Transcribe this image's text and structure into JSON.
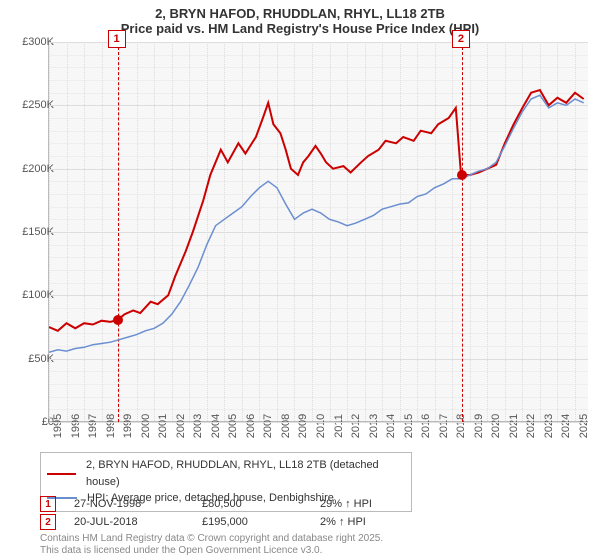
{
  "title_line1": "2, BRYN HAFOD, RHUDDLAN, RHYL, LL18 2TB",
  "title_line2": "Price paid vs. HM Land Registry's House Price Index (HPI)",
  "chart": {
    "type": "line",
    "background_color": "#f7f7f7",
    "grid_color_major": "#d8d8d8",
    "grid_color_minor": "#ececec",
    "axis_color": "#bbbbbb",
    "x_years": [
      1995,
      1996,
      1997,
      1998,
      1999,
      2000,
      2001,
      2002,
      2003,
      2004,
      2005,
      2006,
      2007,
      2008,
      2009,
      2010,
      2011,
      2012,
      2013,
      2014,
      2015,
      2016,
      2017,
      2018,
      2019,
      2020,
      2021,
      2022,
      2023,
      2024,
      2025
    ],
    "xlim": [
      1995,
      2025.8
    ],
    "ylim": [
      0,
      300000
    ],
    "ytick_step": 50000,
    "y_tick_labels": [
      "£0",
      "£50K",
      "£100K",
      "£150K",
      "£200K",
      "£250K",
      "£300K"
    ],
    "x_tick_labels": [
      "1995",
      "1996",
      "1997",
      "1998",
      "1999",
      "2000",
      "2001",
      "2002",
      "2003",
      "2004",
      "2005",
      "2006",
      "2007",
      "2008",
      "2009",
      "2010",
      "2011",
      "2012",
      "2013",
      "2014",
      "2015",
      "2016",
      "2017",
      "2018",
      "2019",
      "2020",
      "2021",
      "2022",
      "2023",
      "2024",
      "2025"
    ],
    "series": [
      {
        "id": "price_paid",
        "label": "2, BRYN HAFOD, RHUDDLAN, RHYL, LL18 2TB (detached house)",
        "color": "#cc0000",
        "line_width": 2,
        "points": [
          [
            1995,
            75000
          ],
          [
            1995.5,
            72000
          ],
          [
            1996,
            78000
          ],
          [
            1996.5,
            74000
          ],
          [
            1997,
            78000
          ],
          [
            1997.5,
            77000
          ],
          [
            1998,
            80000
          ],
          [
            1998.5,
            79000
          ],
          [
            1998.91,
            80500
          ],
          [
            1999.3,
            85000
          ],
          [
            1999.8,
            88000
          ],
          [
            2000.2,
            86000
          ],
          [
            2000.8,
            95000
          ],
          [
            2001.2,
            93000
          ],
          [
            2001.8,
            100000
          ],
          [
            2002.2,
            115000
          ],
          [
            2002.8,
            135000
          ],
          [
            2003.2,
            150000
          ],
          [
            2003.8,
            175000
          ],
          [
            2004.2,
            195000
          ],
          [
            2004.8,
            215000
          ],
          [
            2005.2,
            205000
          ],
          [
            2005.8,
            220000
          ],
          [
            2006.2,
            212000
          ],
          [
            2006.8,
            225000
          ],
          [
            2007.2,
            240000
          ],
          [
            2007.5,
            252000
          ],
          [
            2007.8,
            235000
          ],
          [
            2008.2,
            228000
          ],
          [
            2008.5,
            215000
          ],
          [
            2008.8,
            200000
          ],
          [
            2009.2,
            195000
          ],
          [
            2009.5,
            205000
          ],
          [
            2009.8,
            210000
          ],
          [
            2010.2,
            218000
          ],
          [
            2010.5,
            212000
          ],
          [
            2010.8,
            205000
          ],
          [
            2011.2,
            200000
          ],
          [
            2011.8,
            202000
          ],
          [
            2012.2,
            197000
          ],
          [
            2012.8,
            205000
          ],
          [
            2013.2,
            210000
          ],
          [
            2013.8,
            215000
          ],
          [
            2014.2,
            222000
          ],
          [
            2014.8,
            220000
          ],
          [
            2015.2,
            225000
          ],
          [
            2015.8,
            222000
          ],
          [
            2016.2,
            230000
          ],
          [
            2016.8,
            228000
          ],
          [
            2017.2,
            235000
          ],
          [
            2017.8,
            240000
          ],
          [
            2018.2,
            248000
          ],
          [
            2018.5,
            195500
          ],
          [
            2018.55,
            195000
          ],
          [
            2019,
            195000
          ],
          [
            2019.5,
            197000
          ],
          [
            2020,
            200000
          ],
          [
            2020.5,
            203000
          ],
          [
            2021,
            220000
          ],
          [
            2021.5,
            235000
          ],
          [
            2022,
            248000
          ],
          [
            2022.5,
            260000
          ],
          [
            2023,
            262000
          ],
          [
            2023.5,
            250000
          ],
          [
            2024,
            256000
          ],
          [
            2024.5,
            252000
          ],
          [
            2025,
            260000
          ],
          [
            2025.5,
            255000
          ]
        ]
      },
      {
        "id": "hpi",
        "label": "HPI: Average price, detached house, Denbighshire",
        "color": "#6a8fd0",
        "line_width": 1.5,
        "points": [
          [
            1995,
            55000
          ],
          [
            1995.5,
            57000
          ],
          [
            1996,
            56000
          ],
          [
            1996.5,
            58000
          ],
          [
            1997,
            59000
          ],
          [
            1997.5,
            61000
          ],
          [
            1998,
            62000
          ],
          [
            1998.5,
            63000
          ],
          [
            1999,
            65000
          ],
          [
            1999.5,
            67000
          ],
          [
            2000,
            69000
          ],
          [
            2000.5,
            72000
          ],
          [
            2001,
            74000
          ],
          [
            2001.5,
            78000
          ],
          [
            2002,
            85000
          ],
          [
            2002.5,
            95000
          ],
          [
            2003,
            108000
          ],
          [
            2003.5,
            122000
          ],
          [
            2004,
            140000
          ],
          [
            2004.5,
            155000
          ],
          [
            2005,
            160000
          ],
          [
            2005.5,
            165000
          ],
          [
            2006,
            170000
          ],
          [
            2006.5,
            178000
          ],
          [
            2007,
            185000
          ],
          [
            2007.5,
            190000
          ],
          [
            2008,
            185000
          ],
          [
            2008.5,
            172000
          ],
          [
            2009,
            160000
          ],
          [
            2009.5,
            165000
          ],
          [
            2010,
            168000
          ],
          [
            2010.5,
            165000
          ],
          [
            2011,
            160000
          ],
          [
            2011.5,
            158000
          ],
          [
            2012,
            155000
          ],
          [
            2012.5,
            157000
          ],
          [
            2013,
            160000
          ],
          [
            2013.5,
            163000
          ],
          [
            2014,
            168000
          ],
          [
            2014.5,
            170000
          ],
          [
            2015,
            172000
          ],
          [
            2015.5,
            173000
          ],
          [
            2016,
            178000
          ],
          [
            2016.5,
            180000
          ],
          [
            2017,
            185000
          ],
          [
            2017.5,
            188000
          ],
          [
            2018,
            192000
          ],
          [
            2018.5,
            192000
          ],
          [
            2019,
            195000
          ],
          [
            2019.5,
            198000
          ],
          [
            2020,
            200000
          ],
          [
            2020.5,
            205000
          ],
          [
            2021,
            218000
          ],
          [
            2021.5,
            232000
          ],
          [
            2022,
            245000
          ],
          [
            2022.5,
            255000
          ],
          [
            2023,
            258000
          ],
          [
            2023.5,
            248000
          ],
          [
            2024,
            252000
          ],
          [
            2024.5,
            250000
          ],
          [
            2025,
            255000
          ],
          [
            2025.5,
            252000
          ]
        ]
      }
    ],
    "markers": [
      {
        "n": "1",
        "date_x": 1998.91,
        "price_y": 80500,
        "color": "#cc0000"
      },
      {
        "n": "2",
        "date_x": 2018.55,
        "price_y": 195000,
        "color": "#cc0000"
      }
    ]
  },
  "legend": {
    "rows": [
      {
        "color": "#cc0000",
        "label": "2, BRYN HAFOD, RHUDDLAN, RHYL, LL18 2TB (detached house)"
      },
      {
        "color": "#6a8fd0",
        "label": "HPI: Average price, detached house, Denbighshire"
      }
    ]
  },
  "data_rows": [
    {
      "n": "1",
      "color": "#cc0000",
      "date": "27-NOV-1998",
      "price": "£80,500",
      "delta": "29% ↑ HPI"
    },
    {
      "n": "2",
      "color": "#cc0000",
      "date": "20-JUL-2018",
      "price": "£195,000",
      "delta": "2% ↑ HPI"
    }
  ],
  "footer_line1": "Contains HM Land Registry data © Crown copyright and database right 2025.",
  "footer_line2": "This data is licensed under the Open Government Licence v3.0.",
  "fonts": {
    "title_size_pt": 13,
    "axis_label_size_pt": 11,
    "legend_size_pt": 11,
    "footer_size_pt": 10
  }
}
